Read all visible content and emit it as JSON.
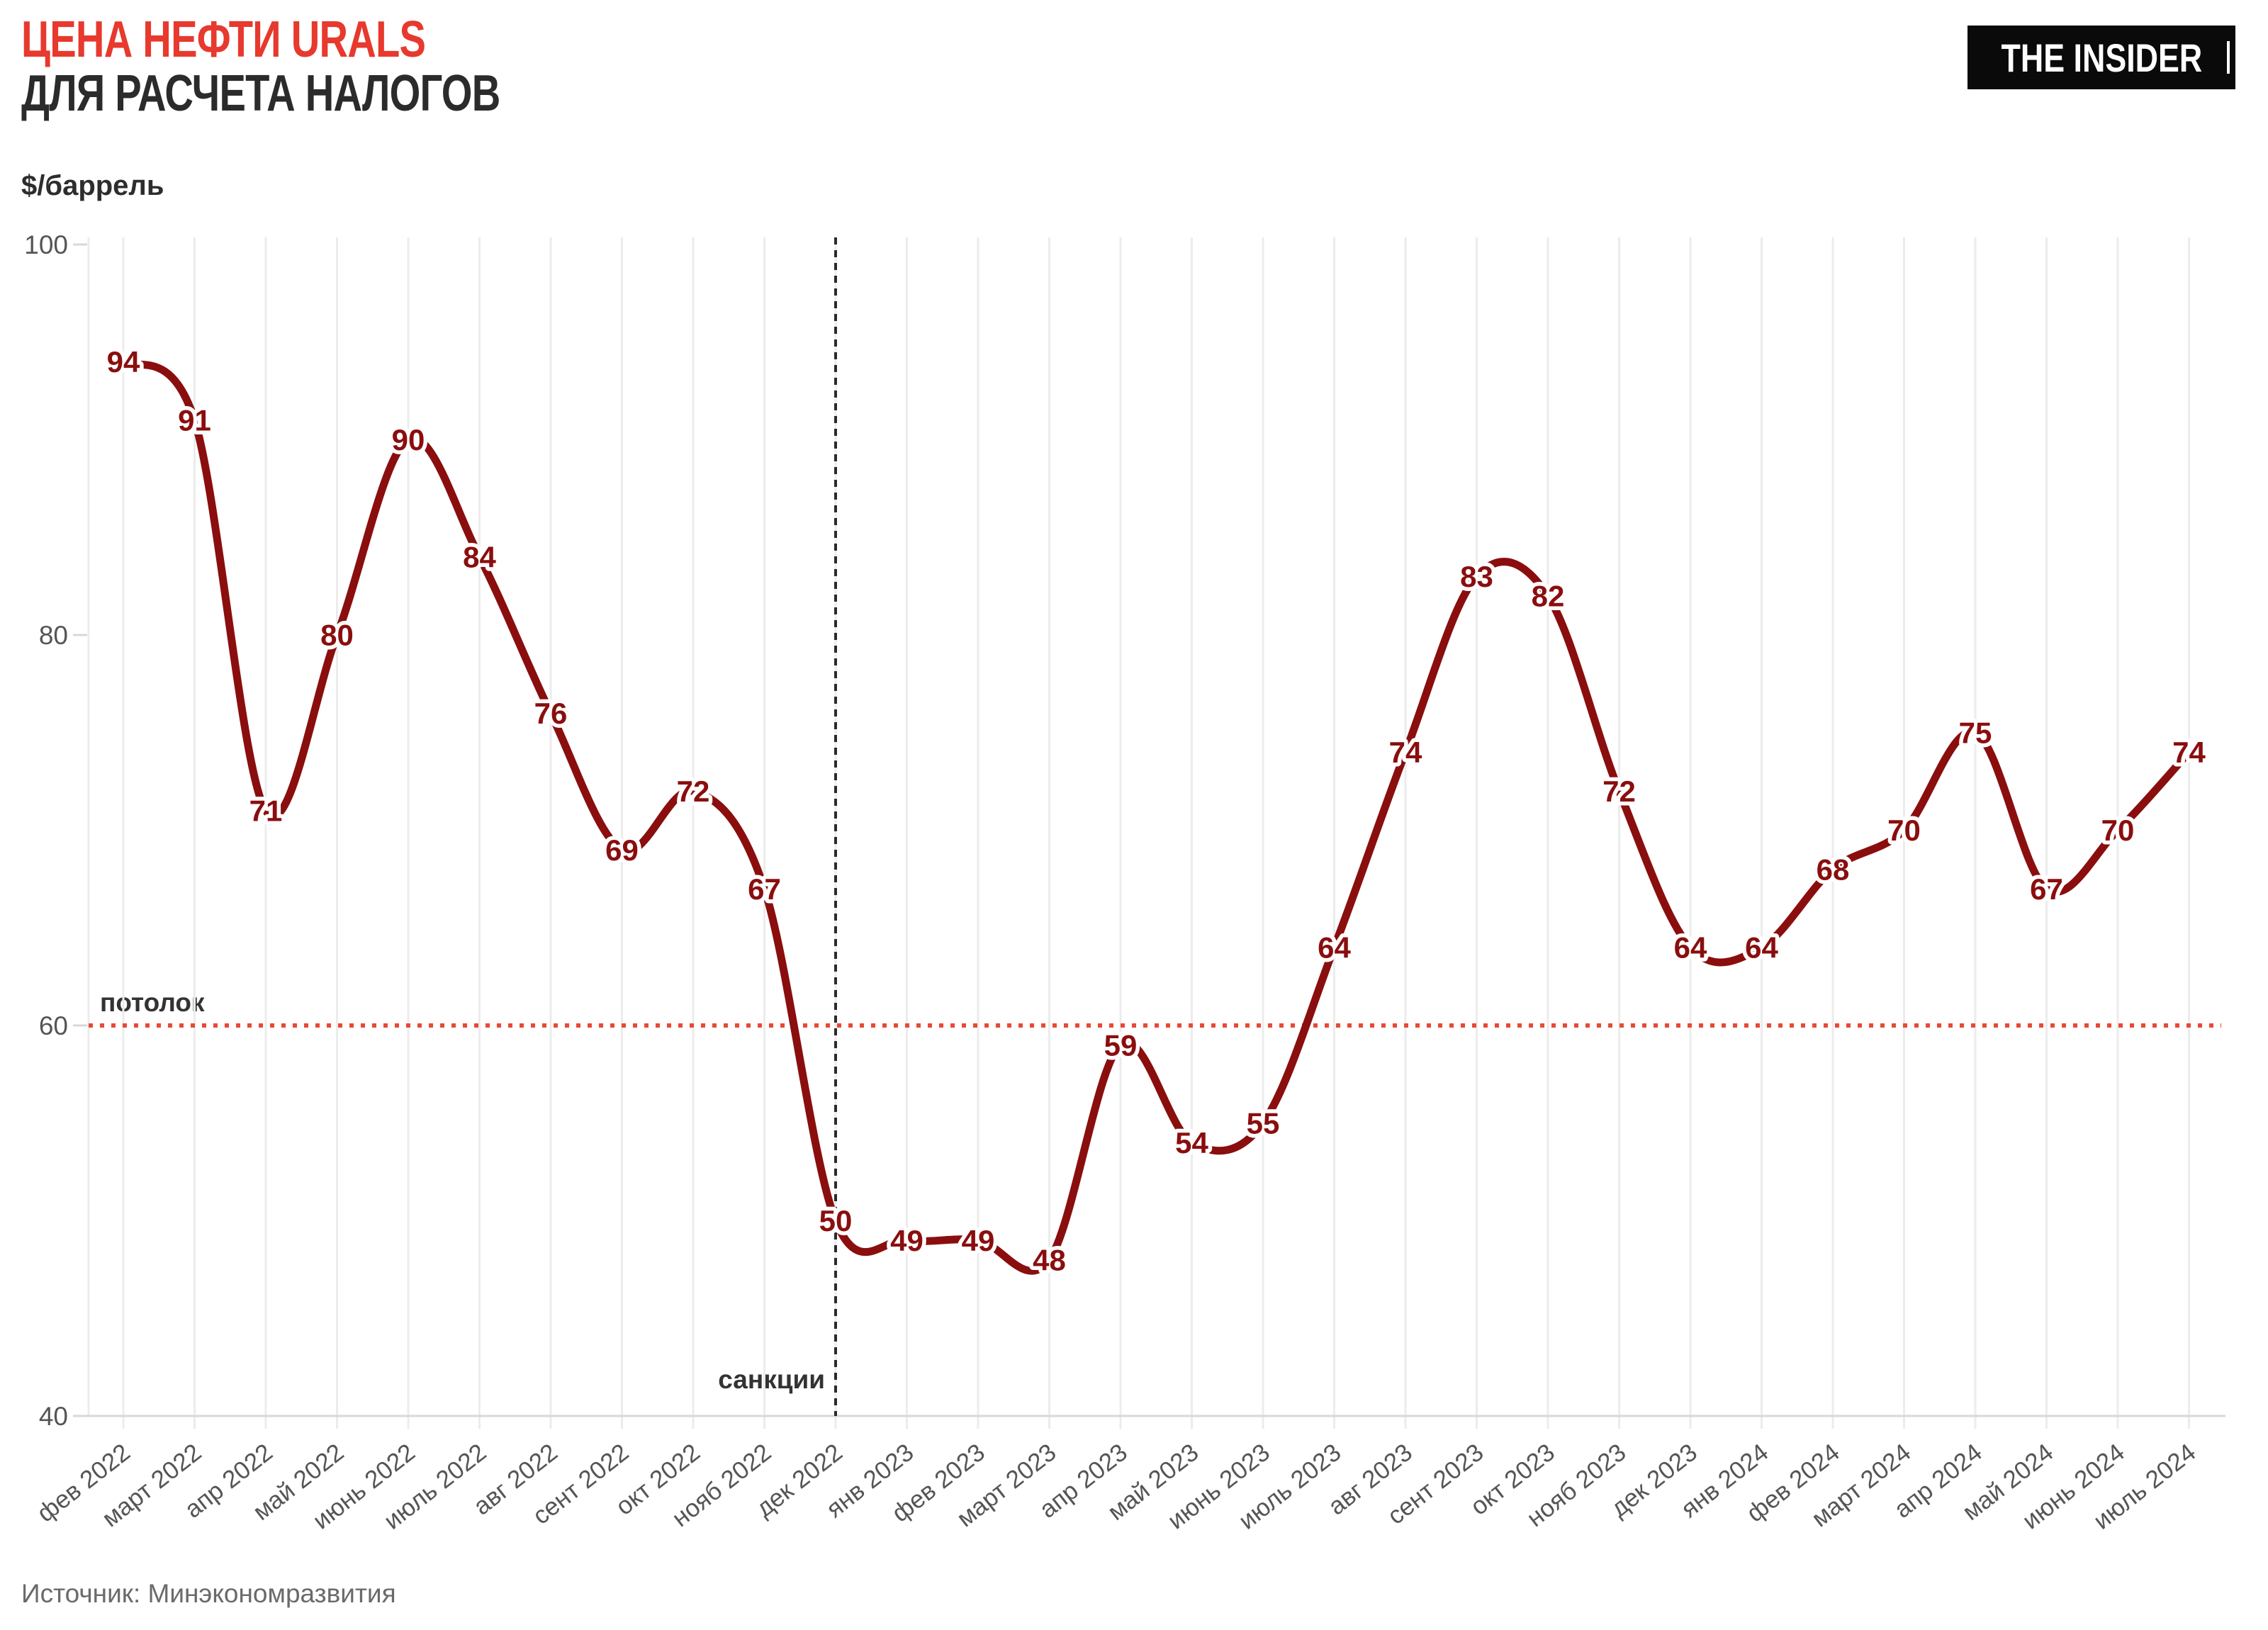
{
  "header": {
    "title_line1": "ЦЕНА НЕФТИ URALS",
    "title_line2": "ДЛЯ РАСЧЕТА НАЛОГОВ",
    "unit_label": "$/баррель",
    "logo_text": "THE INSIDER"
  },
  "annotations": {
    "ceiling_label": "потолок",
    "sanctions_label": "санкции"
  },
  "source_note": "Источник: Минэкономразвития",
  "colors": {
    "title_accent": "#e7392d",
    "title_dark": "#2b2b2b",
    "line": "#8a0e0e",
    "value_label": "#8a0e0e",
    "ceiling_line": "#e84a35",
    "sanctions_line": "#2b2b2b",
    "grid": "#ececec",
    "axis": "#d8d8d8",
    "tick_text": "#555555",
    "annotation_text": "#333333",
    "logo_bg": "#0a0a0a",
    "logo_text": "#ffffff"
  },
  "chart_data": {
    "type": "line",
    "title": "ЦЕНА НЕФТИ URALS ДЛЯ РАСЧЕТА НАЛОГОВ",
    "xlabel": "",
    "ylabel": "$/баррель",
    "categories": [
      "фев 2022",
      "март 2022",
      "апр 2022",
      "май 2022",
      "июнь 2022",
      "июль 2022",
      "авг 2022",
      "сент 2022",
      "окт 2022",
      "нояб 2022",
      "дек 2022",
      "янв 2023",
      "фев 2023",
      "март 2023",
      "апр 2023",
      "май 2023",
      "июнь 2023",
      "июль 2023",
      "авг 2023",
      "сент 2023",
      "окт 2023",
      "нояб 2023",
      "дек 2023",
      "янв 2024",
      "фев 2024",
      "март 2024",
      "апр 2024",
      "май 2024",
      "июнь 2024",
      "июль 2024"
    ],
    "values": [
      94,
      91,
      71,
      80,
      90,
      84,
      76,
      69,
      72,
      67,
      50,
      49,
      49,
      48,
      59,
      54,
      55,
      64,
      74,
      83,
      82,
      72,
      64,
      64,
      68,
      70,
      75,
      67,
      70,
      74
    ],
    "ylim": [
      40,
      100
    ],
    "yticks": [
      40,
      60,
      80,
      100
    ],
    "grid": "vertical",
    "legend_position": "none",
    "ceiling": {
      "value": 60,
      "label": "потолок"
    },
    "sanctions_marker": {
      "category": "дек 2022",
      "label": "санкции"
    }
  }
}
